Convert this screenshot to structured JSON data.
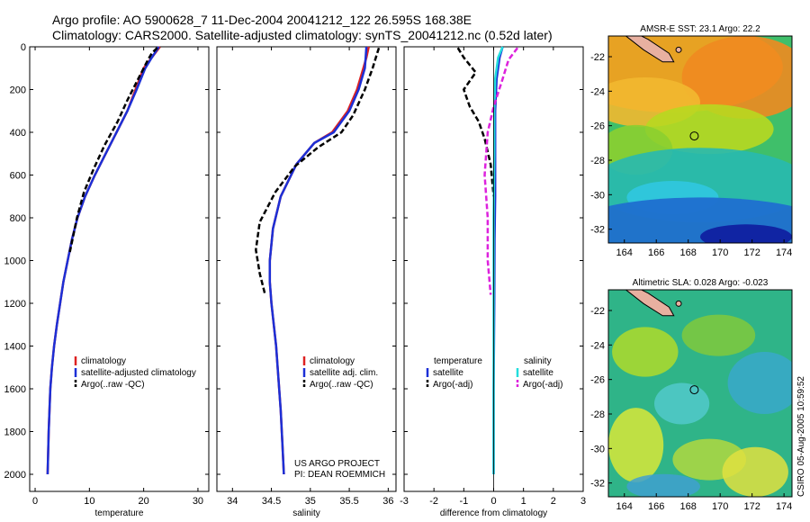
{
  "header": {
    "line1": "Argo profile: AO 5900628_7 11-Dec-2004 20041212_122 26.595S 168.38E",
    "line2": "Climatology: CARS2000. Satellite-adjusted climatology: synTS_20041212.nc (0.52d later)"
  },
  "side_label": "CSIRO 05-Aug-2005 10:59:52",
  "project": {
    "line1": "US ARGO PROJECT",
    "line2": "PI: DEAN ROEMMICH"
  },
  "colors": {
    "climatology": "#dd2222",
    "satellite": "#1c2fd6",
    "argo": "#000000",
    "satellite_diff": "#22dddd",
    "argo_adj": "#dd22dd"
  },
  "chart_data": [
    {
      "type": "line",
      "name": "temperature-profile",
      "xlabel": "temperature",
      "ylabel": "",
      "xlim": [
        -1,
        32
      ],
      "ylim": [
        0,
        2080
      ],
      "y_reversed": true,
      "xticks": [
        0,
        10,
        20,
        30
      ],
      "yticks": [
        0,
        200,
        400,
        600,
        800,
        1000,
        1200,
        1400,
        1600,
        1800,
        2000
      ],
      "legend": [
        "climatology",
        "satellite-adjusted climatology",
        "Argo(..raw -QC)"
      ],
      "series": [
        {
          "name": "climatology",
          "color": "#dd2222",
          "dash": "solid",
          "x": [
            23.0,
            21.5,
            20.0,
            18.5,
            17.0,
            15.0,
            13.0,
            11.0,
            9.2,
            7.8,
            6.8,
            6.0,
            5.2,
            4.6,
            4.0,
            3.5,
            3.1,
            2.8,
            2.5,
            2.3
          ],
          "y": [
            0,
            50,
            100,
            200,
            300,
            400,
            500,
            600,
            700,
            800,
            900,
            1000,
            1100,
            1200,
            1300,
            1400,
            1500,
            1600,
            1800,
            2000
          ]
        },
        {
          "name": "satellite-adjusted climatology",
          "color": "#1c2fd6",
          "dash": "solid",
          "x": [
            22.8,
            21.5,
            20.3,
            18.7,
            17.0,
            15.0,
            13.0,
            11.0,
            9.2,
            7.8,
            6.8,
            6.0,
            5.2,
            4.6,
            4.0,
            3.5,
            3.1,
            2.8,
            2.5,
            2.3
          ],
          "y": [
            0,
            50,
            100,
            200,
            300,
            400,
            500,
            600,
            700,
            800,
            900,
            1000,
            1100,
            1200,
            1300,
            1400,
            1500,
            1600,
            1800,
            2000
          ]
        },
        {
          "name": "Argo(..raw -QC)",
          "color": "#000000",
          "dash": "dashed",
          "x": [
            22.5,
            21.5,
            20.8,
            19.0,
            17.0,
            15.2,
            12.8,
            10.8,
            9.0,
            7.7,
            6.9,
            6.4
          ],
          "y": [
            5,
            30,
            60,
            150,
            250,
            350,
            460,
            570,
            680,
            800,
            900,
            960
          ]
        }
      ]
    },
    {
      "type": "line",
      "name": "salinity-profile",
      "xlabel": "salinity",
      "ylabel": "",
      "xlim": [
        33.8,
        36.1
      ],
      "ylim": [
        0,
        2080
      ],
      "y_reversed": true,
      "xticks": [
        34,
        34.5,
        35,
        35.5,
        36
      ],
      "legend": [
        "climatology",
        "satellite adj. clim.",
        "Argo(..raw -QC)"
      ],
      "series": [
        {
          "name": "climatology",
          "color": "#dd2222",
          "dash": "solid",
          "x": [
            35.75,
            35.72,
            35.68,
            35.6,
            35.48,
            35.28,
            35.05,
            34.82,
            34.62,
            34.52,
            34.48,
            34.48,
            34.5,
            34.53,
            34.56,
            34.58,
            34.6,
            34.62,
            34.64,
            34.66
          ],
          "y": [
            0,
            50,
            100,
            200,
            300,
            400,
            450,
            550,
            700,
            850,
            1000,
            1100,
            1200,
            1300,
            1400,
            1500,
            1600,
            1700,
            1850,
            2000
          ]
        },
        {
          "name": "satellite adj. clim.",
          "color": "#1c2fd6",
          "dash": "solid",
          "x": [
            35.72,
            35.71,
            35.7,
            35.62,
            35.5,
            35.3,
            35.05,
            34.82,
            34.62,
            34.52,
            34.48,
            34.48,
            34.5,
            34.53,
            34.56,
            34.58,
            34.6,
            34.62,
            34.64,
            34.66
          ],
          "y": [
            0,
            50,
            100,
            200,
            300,
            400,
            450,
            550,
            700,
            850,
            1000,
            1100,
            1200,
            1300,
            1400,
            1500,
            1600,
            1700,
            1850,
            2000
          ]
        },
        {
          "name": "Argo(..raw -QC)",
          "color": "#000000",
          "dash": "dashed",
          "x": [
            35.88,
            35.85,
            35.8,
            35.7,
            35.55,
            35.4,
            35.1,
            34.8,
            34.55,
            34.35,
            34.3,
            34.35,
            34.42
          ],
          "y": [
            5,
            40,
            100,
            200,
            320,
            400,
            470,
            560,
            680,
            820,
            950,
            1060,
            1160
          ]
        }
      ]
    },
    {
      "type": "line",
      "name": "difference-profile",
      "xlabel": "difference from climatology",
      "ylabel": "",
      "xlim": [
        -3,
        3
      ],
      "ylim": [
        0,
        2080
      ],
      "y_reversed": true,
      "xticks": [
        -3,
        -2,
        -1,
        0,
        1,
        2,
        3
      ],
      "legend": [
        "temperature",
        "satellite",
        "Argo(-adj)",
        "salinity",
        "satellite",
        "Argo(-adj)"
      ],
      "series": [
        {
          "name": "temperature satellite",
          "color": "#1c2fd6",
          "dash": "solid",
          "x": [
            0.3,
            0.2,
            0.1,
            0.05,
            0.05,
            0.05,
            0.03,
            0.02,
            0.0,
            0.0
          ],
          "y": [
            0,
            50,
            150,
            300,
            500,
            700,
            900,
            1200,
            1600,
            2000
          ]
        },
        {
          "name": "temperature Argo(-adj)",
          "color": "#000000",
          "dash": "dashed",
          "x": [
            -1.2,
            -1.0,
            -0.6,
            -1.0,
            -0.8,
            -0.5,
            -0.3,
            -0.1,
            0.0
          ],
          "y": [
            5,
            50,
            120,
            200,
            280,
            350,
            430,
            550,
            700
          ]
        },
        {
          "name": "salinity satellite",
          "color": "#22dddd",
          "dash": "solid",
          "x": [
            0.3,
            0.15,
            0.05,
            0.02,
            0.02,
            0.0,
            0.0,
            0.0
          ],
          "y": [
            0,
            50,
            150,
            300,
            500,
            800,
            1200,
            2000
          ]
        },
        {
          "name": "salinity Argo(-adj)",
          "color": "#dd22dd",
          "dash": "dashed",
          "x": [
            0.8,
            0.5,
            0.3,
            0.0,
            -0.2,
            -0.3,
            -0.2,
            -0.2,
            -0.1
          ],
          "y": [
            5,
            60,
            150,
            280,
            400,
            600,
            800,
            1000,
            1160
          ]
        }
      ]
    },
    {
      "type": "heatmap",
      "name": "sst-map",
      "title": "AMSR-E SST: 23.1 Argo: 22.2",
      "xlim": [
        163,
        174.5
      ],
      "ylim": [
        -32.8,
        -20.8
      ],
      "xticks": [
        164,
        166,
        168,
        170,
        172,
        174
      ],
      "yticks": [
        -22,
        -24,
        -26,
        -28,
        -30,
        -32
      ],
      "float_position": [
        168.38,
        -26.595
      ]
    },
    {
      "type": "heatmap",
      "name": "sla-map",
      "title": "Altimetric SLA: 0.028 Argo: -0.023",
      "xlim": [
        163,
        174.5
      ],
      "ylim": [
        -32.8,
        -20.8
      ],
      "xticks": [
        164,
        166,
        168,
        170,
        172,
        174
      ],
      "yticks": [
        -22,
        -24,
        -26,
        -28,
        -30,
        -32
      ],
      "float_position": [
        168.38,
        -26.595
      ]
    }
  ]
}
